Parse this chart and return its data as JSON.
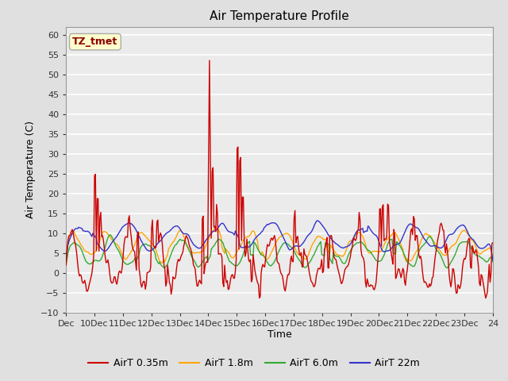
{
  "title": "Air Temperature Profile",
  "xlabel": "Time",
  "ylabel": "Air Temperature (C)",
  "annotation": "TZ_tmet",
  "annotation_color": "#8B0000",
  "annotation_bg": "#FFFFCC",
  "ylim": [
    -10,
    62
  ],
  "yticks": [
    -10,
    -5,
    0,
    5,
    10,
    15,
    20,
    25,
    30,
    35,
    40,
    45,
    50,
    55,
    60
  ],
  "xtick_labels": [
    "Dec",
    "10Dec",
    "11Dec",
    "12Dec",
    "13Dec",
    "14Dec",
    "15Dec",
    "16Dec",
    "17Dec",
    "18Dec",
    "19Dec",
    "20Dec",
    "21Dec",
    "22Dec",
    "23Dec",
    "24"
  ],
  "series_colors": [
    "#CC0000",
    "#FFA500",
    "#33AA33",
    "#3333CC"
  ],
  "series_labels": [
    "AirT 0.35m",
    "AirT 1.8m",
    "AirT 6.0m",
    "AirT 22m"
  ],
  "bg_color": "#E0E0E0",
  "plot_bg_color": "#EBEBEB",
  "grid_color": "#FFFFFF",
  "n_points": 480,
  "seed": 42
}
